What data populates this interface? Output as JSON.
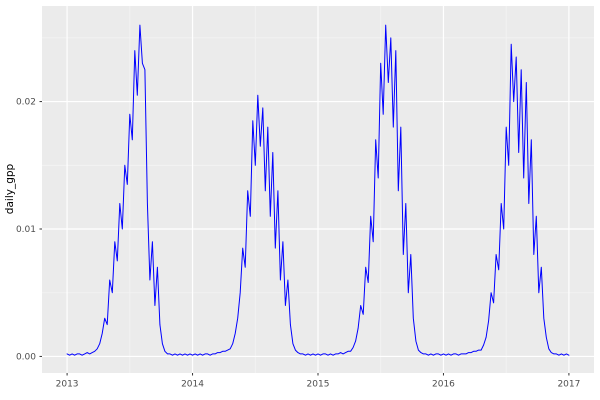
{
  "figure": {
    "background": "#FFFFFF",
    "panel_background": "#EBEBEB",
    "grid_major_color": "#FFFFFF",
    "grid_minor_color": "#F4F4F4",
    "line_color": "#0000FF",
    "axis_text_color": "#4D4D4D",
    "tick_mark_color": "#333333",
    "axis_title_color": "#000000"
  },
  "chart_data": {
    "type": "line",
    "title": "",
    "subtitle": "",
    "xlabel": "",
    "ylabel": "daily_gpp",
    "legend": "none",
    "grid": true,
    "xlim": [
      2012.8,
      2017.2
    ],
    "ylim": [
      -0.0013,
      0.0275
    ],
    "x_ticks": [
      2013,
      2014,
      2015,
      2016,
      2017
    ],
    "x_tick_labels": [
      "2013",
      "2014",
      "2015",
      "2016",
      "2017"
    ],
    "x_minor_ticks": [
      2013.5,
      2014.5,
      2015.5,
      2016.5
    ],
    "y_ticks": [
      0.0,
      0.01,
      0.02
    ],
    "y_tick_labels": [
      "0.00",
      "0.01",
      "0.02"
    ],
    "y_minor_ticks": [
      0.005,
      0.015,
      0.025
    ],
    "series": [
      {
        "name": "daily_gpp",
        "color": "#0000FF",
        "points": [
          [
            2013.0,
            0.0002
          ],
          [
            2013.02,
            0.0001
          ],
          [
            2013.04,
            0.0002
          ],
          [
            2013.06,
            0.0001
          ],
          [
            2013.08,
            0.0002
          ],
          [
            2013.1,
            0.0002
          ],
          [
            2013.12,
            0.0001
          ],
          [
            2013.14,
            0.0002
          ],
          [
            2013.16,
            0.0003
          ],
          [
            2013.18,
            0.0002
          ],
          [
            2013.2,
            0.0003
          ],
          [
            2013.22,
            0.0004
          ],
          [
            2013.24,
            0.0006
          ],
          [
            2013.26,
            0.001
          ],
          [
            2013.28,
            0.0018
          ],
          [
            2013.3,
            0.003
          ],
          [
            2013.32,
            0.0025
          ],
          [
            2013.34,
            0.006
          ],
          [
            2013.36,
            0.005
          ],
          [
            2013.38,
            0.009
          ],
          [
            2013.4,
            0.0075
          ],
          [
            2013.42,
            0.012
          ],
          [
            2013.44,
            0.01
          ],
          [
            2013.46,
            0.015
          ],
          [
            2013.48,
            0.0135
          ],
          [
            2013.5,
            0.019
          ],
          [
            2013.52,
            0.017
          ],
          [
            2013.54,
            0.024
          ],
          [
            2013.56,
            0.0205
          ],
          [
            2013.58,
            0.026
          ],
          [
            2013.6,
            0.023
          ],
          [
            2013.62,
            0.0225
          ],
          [
            2013.64,
            0.012
          ],
          [
            2013.66,
            0.006
          ],
          [
            2013.68,
            0.009
          ],
          [
            2013.7,
            0.004
          ],
          [
            2013.72,
            0.007
          ],
          [
            2013.74,
            0.0025
          ],
          [
            2013.76,
            0.001
          ],
          [
            2013.78,
            0.0004
          ],
          [
            2013.8,
            0.0002
          ],
          [
            2013.82,
            0.0002
          ],
          [
            2013.84,
            0.0001
          ],
          [
            2013.86,
            0.0002
          ],
          [
            2013.88,
            0.0001
          ],
          [
            2013.9,
            0.0002
          ],
          [
            2013.92,
            0.0001
          ],
          [
            2013.94,
            0.0002
          ],
          [
            2013.96,
            0.0001
          ],
          [
            2013.98,
            0.0002
          ],
          [
            2014.0,
            0.0001
          ],
          [
            2014.02,
            0.0002
          ],
          [
            2014.04,
            0.0001
          ],
          [
            2014.06,
            0.0002
          ],
          [
            2014.08,
            0.0001
          ],
          [
            2014.1,
            0.0002
          ],
          [
            2014.12,
            0.0002
          ],
          [
            2014.14,
            0.0001
          ],
          [
            2014.16,
            0.0002
          ],
          [
            2014.18,
            0.0002
          ],
          [
            2014.2,
            0.0003
          ],
          [
            2014.22,
            0.0003
          ],
          [
            2014.24,
            0.0004
          ],
          [
            2014.26,
            0.0004
          ],
          [
            2014.28,
            0.0005
          ],
          [
            2014.3,
            0.0006
          ],
          [
            2014.32,
            0.001
          ],
          [
            2014.34,
            0.0018
          ],
          [
            2014.36,
            0.003
          ],
          [
            2014.38,
            0.005
          ],
          [
            2014.4,
            0.0085
          ],
          [
            2014.42,
            0.007
          ],
          [
            2014.44,
            0.013
          ],
          [
            2014.46,
            0.011
          ],
          [
            2014.48,
            0.0185
          ],
          [
            2014.5,
            0.015
          ],
          [
            2014.52,
            0.0205
          ],
          [
            2014.54,
            0.0165
          ],
          [
            2014.56,
            0.0195
          ],
          [
            2014.58,
            0.013
          ],
          [
            2014.6,
            0.018
          ],
          [
            2014.62,
            0.011
          ],
          [
            2014.64,
            0.016
          ],
          [
            2014.66,
            0.0085
          ],
          [
            2014.68,
            0.013
          ],
          [
            2014.7,
            0.006
          ],
          [
            2014.72,
            0.009
          ],
          [
            2014.74,
            0.004
          ],
          [
            2014.76,
            0.006
          ],
          [
            2014.78,
            0.0025
          ],
          [
            2014.8,
            0.001
          ],
          [
            2014.82,
            0.0005
          ],
          [
            2014.84,
            0.0003
          ],
          [
            2014.86,
            0.0002
          ],
          [
            2014.88,
            0.0002
          ],
          [
            2014.9,
            0.0001
          ],
          [
            2014.92,
            0.0002
          ],
          [
            2014.94,
            0.0001
          ],
          [
            2014.96,
            0.0002
          ],
          [
            2014.98,
            0.0001
          ],
          [
            2015.0,
            0.0002
          ],
          [
            2015.02,
            0.0001
          ],
          [
            2015.04,
            0.0002
          ],
          [
            2015.06,
            0.0002
          ],
          [
            2015.08,
            0.0001
          ],
          [
            2015.1,
            0.0002
          ],
          [
            2015.12,
            0.0001
          ],
          [
            2015.14,
            0.0002
          ],
          [
            2015.16,
            0.0002
          ],
          [
            2015.18,
            0.0003
          ],
          [
            2015.2,
            0.0002
          ],
          [
            2015.22,
            0.0003
          ],
          [
            2015.24,
            0.0004
          ],
          [
            2015.26,
            0.0004
          ],
          [
            2015.28,
            0.0007
          ],
          [
            2015.3,
            0.0012
          ],
          [
            2015.32,
            0.0022
          ],
          [
            2015.34,
            0.004
          ],
          [
            2015.36,
            0.0033
          ],
          [
            2015.38,
            0.007
          ],
          [
            2015.4,
            0.0058
          ],
          [
            2015.42,
            0.011
          ],
          [
            2015.44,
            0.009
          ],
          [
            2015.46,
            0.017
          ],
          [
            2015.48,
            0.014
          ],
          [
            2015.5,
            0.023
          ],
          [
            2015.52,
            0.019
          ],
          [
            2015.54,
            0.026
          ],
          [
            2015.56,
            0.0215
          ],
          [
            2015.58,
            0.025
          ],
          [
            2015.6,
            0.018
          ],
          [
            2015.62,
            0.024
          ],
          [
            2015.64,
            0.013
          ],
          [
            2015.66,
            0.018
          ],
          [
            2015.68,
            0.008
          ],
          [
            2015.7,
            0.012
          ],
          [
            2015.72,
            0.005
          ],
          [
            2015.74,
            0.008
          ],
          [
            2015.76,
            0.003
          ],
          [
            2015.78,
            0.0012
          ],
          [
            2015.8,
            0.0005
          ],
          [
            2015.82,
            0.0003
          ],
          [
            2015.84,
            0.0002
          ],
          [
            2015.86,
            0.0002
          ],
          [
            2015.88,
            0.0001
          ],
          [
            2015.9,
            0.0002
          ],
          [
            2015.92,
            0.0001
          ],
          [
            2015.94,
            0.0002
          ],
          [
            2015.96,
            0.0002
          ],
          [
            2015.98,
            0.0001
          ],
          [
            2016.0,
            0.0002
          ],
          [
            2016.02,
            0.0001
          ],
          [
            2016.04,
            0.0002
          ],
          [
            2016.06,
            0.0001
          ],
          [
            2016.08,
            0.0002
          ],
          [
            2016.1,
            0.0002
          ],
          [
            2016.12,
            0.0001
          ],
          [
            2016.14,
            0.0002
          ],
          [
            2016.16,
            0.0002
          ],
          [
            2016.18,
            0.0002
          ],
          [
            2016.2,
            0.0003
          ],
          [
            2016.22,
            0.0003
          ],
          [
            2016.24,
            0.0004
          ],
          [
            2016.26,
            0.0004
          ],
          [
            2016.28,
            0.0005
          ],
          [
            2016.3,
            0.0005
          ],
          [
            2016.32,
            0.0009
          ],
          [
            2016.34,
            0.0015
          ],
          [
            2016.36,
            0.0028
          ],
          [
            2016.38,
            0.005
          ],
          [
            2016.4,
            0.0042
          ],
          [
            2016.42,
            0.008
          ],
          [
            2016.44,
            0.0068
          ],
          [
            2016.46,
            0.012
          ],
          [
            2016.48,
            0.01
          ],
          [
            2016.5,
            0.018
          ],
          [
            2016.52,
            0.015
          ],
          [
            2016.54,
            0.0245
          ],
          [
            2016.56,
            0.02
          ],
          [
            2016.58,
            0.0235
          ],
          [
            2016.6,
            0.016
          ],
          [
            2016.62,
            0.0225
          ],
          [
            2016.64,
            0.014
          ],
          [
            2016.66,
            0.0215
          ],
          [
            2016.68,
            0.012
          ],
          [
            2016.7,
            0.017
          ],
          [
            2016.72,
            0.008
          ],
          [
            2016.74,
            0.011
          ],
          [
            2016.76,
            0.005
          ],
          [
            2016.78,
            0.007
          ],
          [
            2016.8,
            0.003
          ],
          [
            2016.82,
            0.0015
          ],
          [
            2016.84,
            0.0006
          ],
          [
            2016.86,
            0.0003
          ],
          [
            2016.88,
            0.0002
          ],
          [
            2016.9,
            0.0002
          ],
          [
            2016.92,
            0.0001
          ],
          [
            2016.94,
            0.0002
          ],
          [
            2016.96,
            0.0001
          ],
          [
            2016.98,
            0.0002
          ],
          [
            2017.0,
            0.0001
          ]
        ]
      }
    ]
  }
}
